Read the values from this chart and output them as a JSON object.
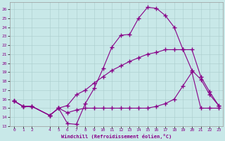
{
  "xlabel": "Windchill (Refroidissement éolien,°C)",
  "bg_color": "#c8e8e8",
  "line_color": "#880088",
  "xlim": [
    -0.5,
    23.5
  ],
  "ylim": [
    13,
    26.8
  ],
  "yticks": [
    13,
    14,
    15,
    16,
    17,
    18,
    19,
    20,
    21,
    22,
    23,
    24,
    25,
    26
  ],
  "xticks": [
    0,
    1,
    2,
    4,
    5,
    6,
    7,
    8,
    9,
    10,
    11,
    12,
    13,
    14,
    15,
    16,
    17,
    18,
    19,
    20,
    21,
    22,
    23
  ],
  "series1_x": [
    0,
    1,
    2,
    4,
    5,
    6,
    7,
    8,
    9,
    10,
    11,
    12,
    13,
    14,
    15,
    16,
    17,
    18,
    19,
    20,
    21,
    22,
    23
  ],
  "series1_y": [
    15.8,
    15.2,
    15.2,
    14.2,
    15.0,
    13.3,
    13.2,
    15.5,
    17.2,
    19.4,
    21.8,
    23.1,
    23.2,
    25.0,
    26.2,
    26.1,
    25.3,
    24.0,
    21.5,
    19.2,
    18.2,
    16.5,
    15.3
  ],
  "series2_x": [
    0,
    1,
    2,
    4,
    5,
    6,
    7,
    8,
    9,
    10,
    11,
    12,
    13,
    14,
    15,
    16,
    17,
    18,
    19,
    20,
    21,
    22,
    23
  ],
  "series2_y": [
    15.8,
    15.2,
    15.2,
    14.2,
    15.0,
    15.3,
    16.5,
    17.0,
    17.8,
    18.5,
    19.2,
    19.7,
    20.2,
    20.6,
    21.0,
    21.2,
    21.5,
    21.5,
    21.5,
    21.5,
    18.5,
    16.8,
    15.3
  ],
  "series3_x": [
    0,
    1,
    2,
    4,
    5,
    6,
    7,
    8,
    9,
    10,
    11,
    12,
    13,
    14,
    15,
    16,
    17,
    18,
    19,
    20,
    21,
    22,
    23
  ],
  "series3_y": [
    15.8,
    15.2,
    15.2,
    14.2,
    15.0,
    14.5,
    14.8,
    15.0,
    15.0,
    15.0,
    15.0,
    15.0,
    15.0,
    15.0,
    15.0,
    15.2,
    15.5,
    16.0,
    17.5,
    19.0,
    15.0,
    15.0,
    15.0
  ]
}
